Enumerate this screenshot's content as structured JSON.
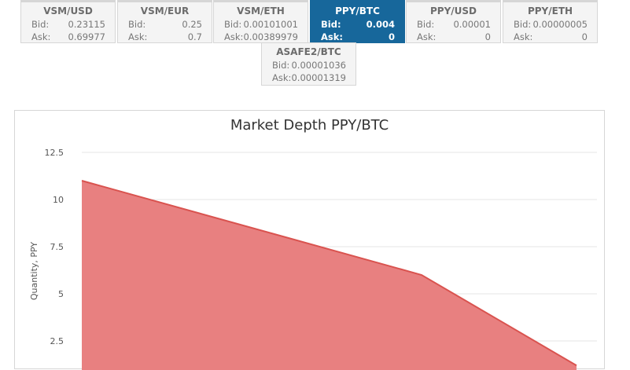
{
  "tiles": [
    {
      "pair": "VSM/USD",
      "bid_label": "Bid:",
      "bid": "0.23115",
      "ask_label": "Ask:",
      "ask": "0.69977",
      "active": false
    },
    {
      "pair": "VSM/EUR",
      "bid_label": "Bid:",
      "bid": "0.25",
      "ask_label": "Ask:",
      "ask": "0.7",
      "active": false
    },
    {
      "pair": "VSM/ETH",
      "bid_label": "Bid:",
      "bid": "0.00101001",
      "ask_label": "Ask:",
      "ask": "0.00389979",
      "active": false
    },
    {
      "pair": "PPY/BTC",
      "bid_label": "Bid:",
      "bid": "0.004",
      "ask_label": "Ask:",
      "ask": "0",
      "active": true
    },
    {
      "pair": "PPY/USD",
      "bid_label": "Bid:",
      "bid": "0.00001",
      "ask_label": "Ask:",
      "ask": "0",
      "active": false
    },
    {
      "pair": "PPY/ETH",
      "bid_label": "Bid:",
      "bid": "0.00000005",
      "ask_label": "Ask:",
      "ask": "0",
      "active": false
    },
    {
      "pair": "ASAFE2/BTC",
      "bid_label": "Bid:",
      "bid": "0.00001036",
      "ask_label": "Ask:",
      "ask": "0.00001319",
      "active": false
    }
  ],
  "colors": {
    "active_tile": "#17679b",
    "area_fill": "#e88080",
    "area_line": "#d9534f",
    "grid": "#e6e6e6"
  },
  "chart_data": {
    "type": "area",
    "title": "Market Depth PPY/BTC",
    "ylabel": "Quantity, PPY",
    "xlabel": "",
    "y_ticks": [
      "2.5",
      "5",
      "7.5",
      "10",
      "12.5"
    ],
    "ylim": [
      0,
      12.5
    ],
    "grid": true,
    "series": [
      {
        "values": [
          11,
          6,
          1.2
        ]
      }
    ]
  }
}
